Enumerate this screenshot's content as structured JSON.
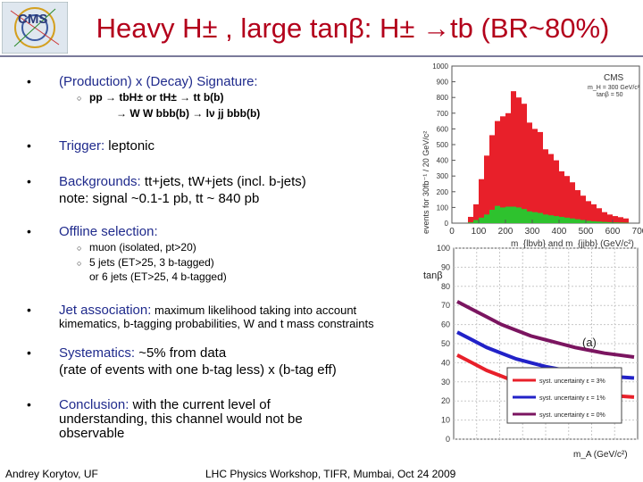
{
  "slide": {
    "logo_text": "CMS",
    "title": "Heavy H± , large tanβ: H± →tb (BR~80%)",
    "bullets": {
      "b1": {
        "head": "(Production) x (Decay) Signature:",
        "sub1": "pp → tbH± or tH± → tt b(b)",
        "sub2": "→ W W bbb(b) → lν jj bbb(b)"
      },
      "b2": {
        "head": "Trigger:",
        "text": " leptonic"
      },
      "b3": {
        "head": "Backgrounds:",
        "text": " tt+jets, tW+jets (incl. b-jets)",
        "line2": "note: signal ~0.1-1 pb, tt ~ 840 pb"
      },
      "b4": {
        "head": "Offline selection:",
        "sub1": "muon (isolated, pt>20)",
        "sub2": "5 jets (ET>25, 3 b-tagged)",
        "sub3": "or 6 jets (ET>25, 4 b-tagged)"
      },
      "b5": {
        "head": "Jet association:",
        "text": " maximum likelihood taking into account",
        "line2": "kimematics, b-tagging probabilities, W and t mass constraints"
      },
      "b6": {
        "head": "Systematics:",
        "text": " ~5% from data",
        "line2": "(rate of events with one b-tag less) x (b-tag eff)"
      },
      "b7": {
        "head": "Conclusion:",
        "text": " with the current level of",
        "line2": "understanding, this channel would not be",
        "line3": "observable"
      }
    },
    "footer": {
      "author": "Andrey Korytov, UF",
      "event": "LHC Physics Workshop, TIFR, Mumbai, Oct 24 2009"
    }
  },
  "chart_data": [
    {
      "type": "bar",
      "title": "",
      "xlabel": "m_{lbνb} and m_{jjbb} (GeV/c²)",
      "ylabel": "events for 30fb⁻¹ / 20 GeV/c²",
      "xlim": [
        0,
        700
      ],
      "ylim": [
        0,
        1000
      ],
      "xticks": [
        "0",
        "100",
        "200",
        "300",
        "400",
        "500",
        "600",
        "700"
      ],
      "yticks": [
        "0",
        "100",
        "200",
        "300",
        "400",
        "500",
        "600",
        "700",
        "800",
        "900",
        "1000"
      ],
      "label": "CMS",
      "annotations": [
        "m_H = 300 GeV/c²",
        "tanβ = 50"
      ],
      "x": [
        70,
        90,
        110,
        130,
        150,
        170,
        190,
        210,
        230,
        250,
        270,
        290,
        310,
        330,
        350,
        370,
        390,
        410,
        430,
        450,
        470,
        490,
        510,
        530,
        550,
        570,
        590,
        610,
        630,
        650
      ],
      "series": [
        {
          "color": "#e8202a",
          "values": [
            40,
            120,
            280,
            430,
            560,
            650,
            680,
            700,
            840,
            800,
            760,
            640,
            600,
            580,
            470,
            440,
            400,
            330,
            300,
            260,
            210,
            175,
            140,
            120,
            95,
            70,
            55,
            45,
            38,
            30
          ]
        },
        {
          "color": "#2ec22e",
          "values": [
            5,
            20,
            35,
            55,
            85,
            110,
            100,
            105,
            105,
            100,
            90,
            75,
            70,
            65,
            55,
            50,
            45,
            40,
            35,
            30,
            25,
            20,
            15,
            12,
            10,
            8,
            6,
            5,
            4,
            3
          ]
        }
      ]
    },
    {
      "type": "line",
      "label": "(a)",
      "xlabel": "m_A (GeV/c²)",
      "ylabel": "tanβ",
      "ylim": [
        0,
        100
      ],
      "yticks": [
        "100",
        "90",
        "80",
        "70",
        "60",
        "50",
        "40",
        "30",
        "20",
        "10",
        "0"
      ],
      "series": [
        {
          "name": "syst. uncertainty ε = 3%",
          "color": "#e8202a",
          "values": [
            44,
            40,
            36,
            33,
            30,
            28,
            26.5,
            25,
            24,
            23.5,
            23,
            22.5,
            22
          ]
        },
        {
          "name": "syst. uncertainty ε = 1%",
          "color": "#2222c8",
          "values": [
            56,
            52,
            48,
            45,
            42,
            40,
            38,
            36.5,
            35,
            34,
            33,
            32.5,
            32
          ]
        },
        {
          "name": "syst. uncertainty ε = 0%",
          "color": "#7b1560",
          "values": [
            72,
            68,
            64,
            60,
            57,
            54,
            52,
            50,
            48,
            46.5,
            45,
            44,
            43
          ]
        }
      ]
    }
  ]
}
